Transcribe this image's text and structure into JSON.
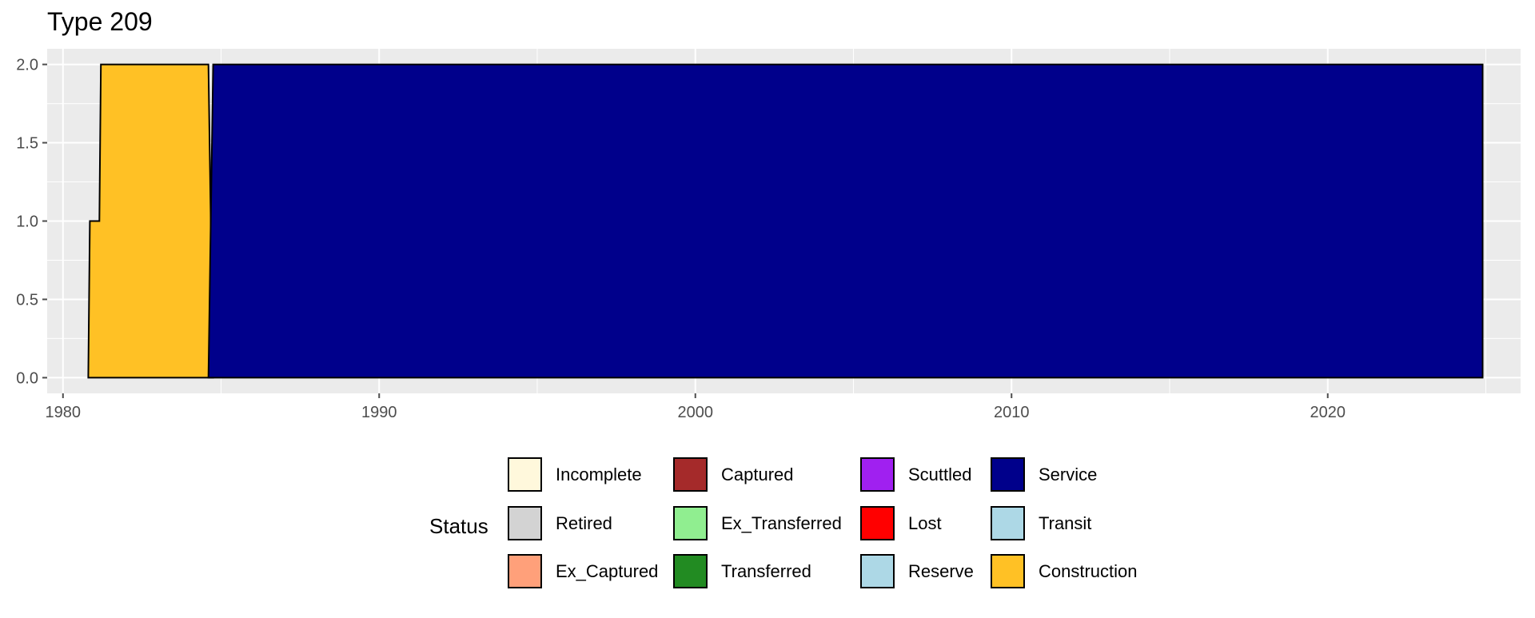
{
  "chart_data": {
    "type": "area",
    "title": "Type 209",
    "xlabel": "",
    "ylabel": "",
    "xlim": [
      1979.5,
      2026.1
    ],
    "ylim": [
      -0.1,
      2.1
    ],
    "x_ticks": [
      1980,
      1990,
      2000,
      2010,
      2020
    ],
    "y_ticks": [
      0.0,
      0.5,
      1.0,
      1.5,
      2.0
    ],
    "y_tick_labels": [
      "0.0",
      "0.5",
      "1.0",
      "1.5",
      "2.0"
    ],
    "grid": true,
    "stacked": true,
    "legend_title": "Status",
    "legend_position": "bottom",
    "series": [
      {
        "name": "Construction",
        "color": "#FFC125",
        "points": [
          [
            1980.8,
            0
          ],
          [
            1980.85,
            1
          ],
          [
            1981.15,
            1
          ],
          [
            1981.2,
            2
          ],
          [
            1984.6,
            2
          ],
          [
            1984.75,
            0
          ]
        ]
      },
      {
        "name": "Service",
        "color": "#00008B",
        "points": [
          [
            1984.6,
            0
          ],
          [
            1984.75,
            2
          ],
          [
            2024.9,
            2
          ],
          [
            2024.9,
            0
          ]
        ]
      }
    ],
    "legend": [
      {
        "name": "Incomplete",
        "color": "#FFF8DC"
      },
      {
        "name": "Retired",
        "color": "#D3D3D3"
      },
      {
        "name": "Ex_Captured",
        "color": "#FFA07A"
      },
      {
        "name": "Captured",
        "color": "#A52A2A"
      },
      {
        "name": "Ex_Transferred",
        "color": "#90EE90"
      },
      {
        "name": "Transferred",
        "color": "#228B22"
      },
      {
        "name": "Scuttled",
        "color": "#A020F0"
      },
      {
        "name": "Lost",
        "color": "#FF0000"
      },
      {
        "name": "Reserve",
        "color": "#ADD8E6"
      },
      {
        "name": "Service",
        "color": "#00008B"
      },
      {
        "name": "Transit",
        "color": "#ADD8E6"
      },
      {
        "name": "Construction",
        "color": "#FFC125"
      }
    ]
  }
}
